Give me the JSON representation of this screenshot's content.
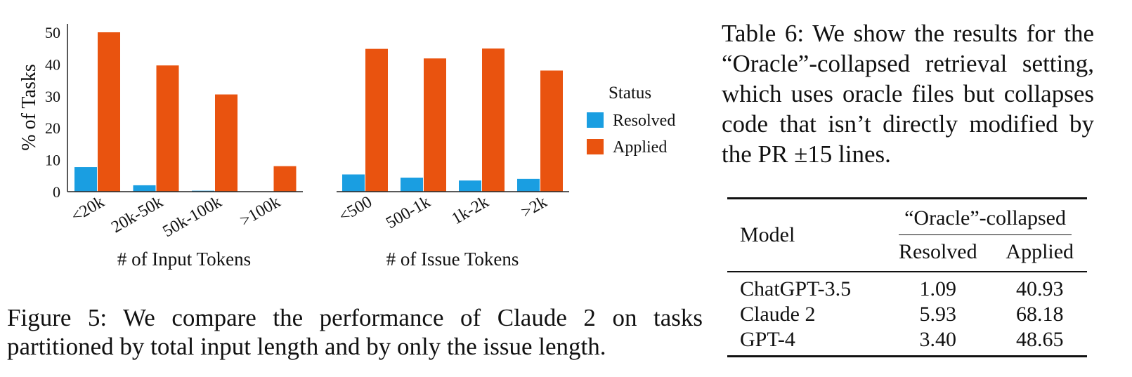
{
  "chart_data": [
    {
      "type": "bar",
      "ylabel": "% of Tasks",
      "xlabel": "# of Input Tokens",
      "categories": [
        "<20k",
        "20k-50k",
        "50k-100k",
        ">100k"
      ],
      "series": [
        {
          "name": "Resolved",
          "values": [
            7.7,
            2.0,
            0.3,
            0.0
          ]
        },
        {
          "name": "Applied",
          "values": [
            50.0,
            39.6,
            30.5,
            8.0
          ]
        }
      ],
      "ylim": [
        0,
        52
      ],
      "yticks": [
        "0",
        "10",
        "20",
        "30",
        "40",
        "50"
      ]
    },
    {
      "type": "bar",
      "xlabel": "# of Issue Tokens",
      "categories": [
        "<500",
        "500-1k",
        "1k-2k",
        ">2k"
      ],
      "series": [
        {
          "name": "Resolved",
          "values": [
            5.4,
            4.4,
            3.5,
            4.0
          ]
        },
        {
          "name": "Applied",
          "values": [
            44.8,
            41.8,
            44.9,
            38.0
          ]
        }
      ],
      "ylim": [
        0,
        52
      ]
    }
  ],
  "legend": {
    "title": "Status",
    "placement": "right",
    "items": [
      {
        "label": "Resolved",
        "color": "#1a9ee1"
      },
      {
        "label": "Applied",
        "color": "#e9530f"
      }
    ]
  },
  "figure_caption": "Figure 5: We compare the performance of Claude 2 on tasks partitioned by total input length and by only the issue length.",
  "table_caption": "Table 6: We show the results for the “Oracle”-collapsed retrieval setting, which uses oracle files but collapses code that isn’t directly modified by the PR ±15 lines.",
  "table": {
    "col_model": "Model",
    "col_group": "“Oracle”-collapsed",
    "col_resolved": "Resolved",
    "col_applied": "Applied",
    "rows": [
      {
        "model": "ChatGPT-3.5",
        "resolved": "1.09",
        "applied": "40.93"
      },
      {
        "model": "Claude 2",
        "resolved": "5.93",
        "applied": "68.18"
      },
      {
        "model": "GPT-4",
        "resolved": "3.40",
        "applied": "48.65"
      }
    ]
  }
}
